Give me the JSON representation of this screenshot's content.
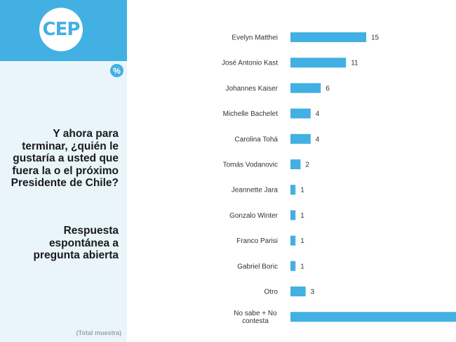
{
  "brand": {
    "logo_text": "CEP",
    "percent_badge": "%",
    "accent_color": "#42b0e3",
    "panel_color": "#eaf5fb"
  },
  "question": "Y ahora para terminar, ¿quién le gustaría a usted que fuera la o el próximo Presidente de Chile?",
  "subtitle": "Respuesta espontánea a pregunta abierta",
  "footnote": "(Total muestra)",
  "chart_data": {
    "type": "bar",
    "orientation": "horizontal",
    "bar_color": "#42b0e3",
    "categories": [
      "Evelyn Matthei",
      "José Antonio Kast",
      "Johannes Kaiser",
      "Michelle Bachelet",
      "Carolina Tohá",
      "Tomás Vodanovic",
      "Jeannette Jara",
      "Gonzalo Winter",
      "Franco Parisi",
      "Gabriel Boric",
      "Otro",
      "No sabe + No contesta"
    ],
    "category_lines": [
      [
        "Evelyn Matthei"
      ],
      [
        "José Antonio Kast"
      ],
      [
        "Johannes Kaiser"
      ],
      [
        "Michelle Bachelet"
      ],
      [
        "Carolina Tohá"
      ],
      [
        "Tomás Vodanovic"
      ],
      [
        "Jeannette Jara"
      ],
      [
        "Gonzalo Winter"
      ],
      [
        "Franco Parisi"
      ],
      [
        "Gabriel Boric"
      ],
      [
        "Otro"
      ],
      [
        "No sabe + No",
        "contesta"
      ]
    ],
    "values": [
      15,
      11,
      6,
      4,
      4,
      2,
      1,
      1,
      1,
      1,
      3,
      null
    ],
    "value_labels": [
      "15",
      "11",
      "6",
      "4",
      "4",
      "2",
      "1",
      "1",
      "1",
      "1",
      "3",
      ""
    ]
  }
}
